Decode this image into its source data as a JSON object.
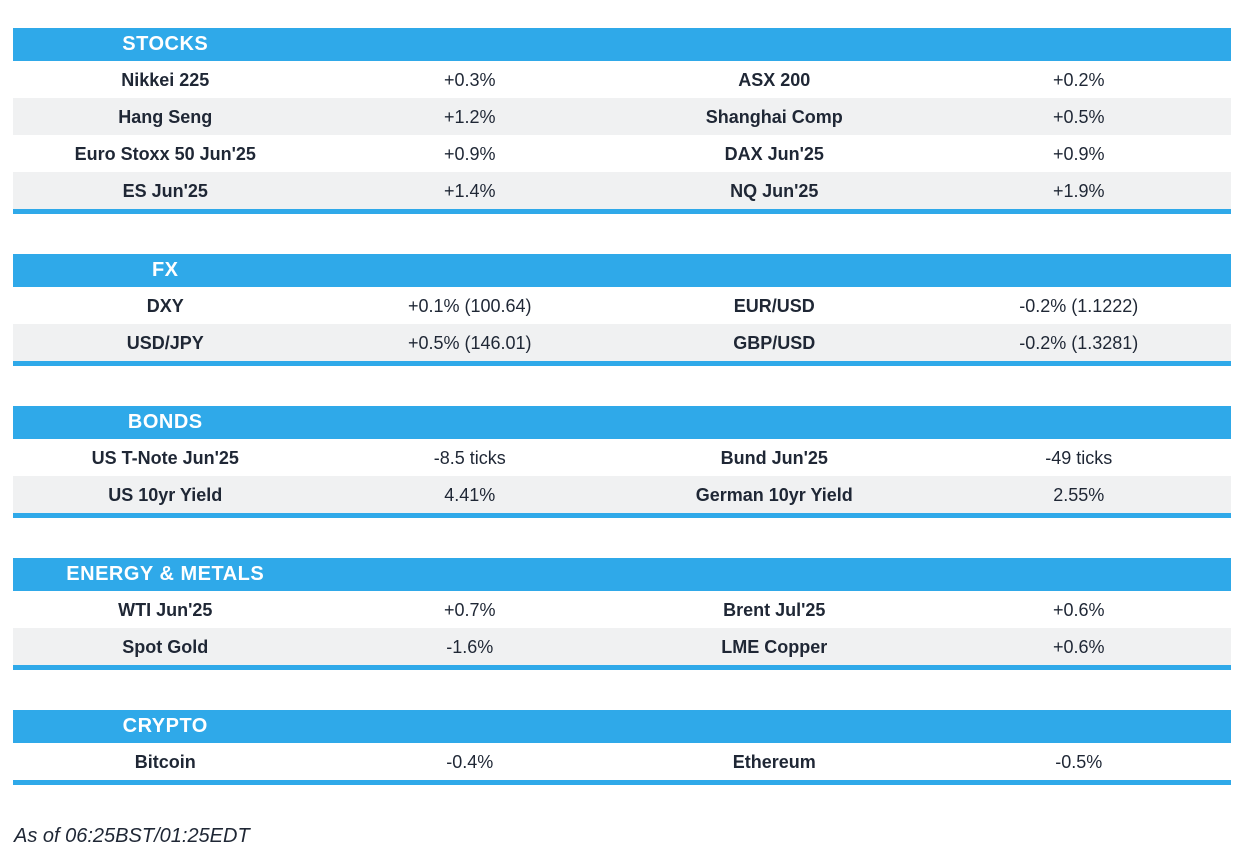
{
  "colors": {
    "accent": "#2FA9E9",
    "row_alt": "#F0F1F2",
    "text": "#1F2735",
    "header_text": "#FFFFFF"
  },
  "sections": [
    {
      "title": "STOCKS",
      "rows": [
        [
          "Nikkei 225",
          "+0.3%",
          "ASX 200",
          "+0.2%"
        ],
        [
          "Hang Seng",
          "+1.2%",
          "Shanghai Comp",
          "+0.5%"
        ],
        [
          "Euro Stoxx 50 Jun'25",
          "+0.9%",
          "DAX Jun'25",
          "+0.9%"
        ],
        [
          "ES Jun'25",
          "+1.4%",
          "NQ Jun'25",
          "+1.9%"
        ]
      ]
    },
    {
      "title": "FX",
      "rows": [
        [
          "DXY",
          "+0.1% (100.64)",
          "EUR/USD",
          "-0.2% (1.1222)"
        ],
        [
          "USD/JPY",
          "+0.5% (146.01)",
          "GBP/USD",
          "-0.2% (1.3281)"
        ]
      ]
    },
    {
      "title": "BONDS",
      "rows": [
        [
          "US T-Note Jun'25",
          "-8.5 ticks",
          "Bund Jun'25",
          "-49 ticks"
        ],
        [
          "US 10yr Yield",
          "4.41%",
          "German 10yr Yield",
          "2.55%"
        ]
      ]
    },
    {
      "title": "ENERGY & METALS",
      "rows": [
        [
          "WTI Jun'25",
          "+0.7%",
          "Brent Jul'25",
          "+0.6%"
        ],
        [
          "Spot Gold",
          "-1.6%",
          "LME Copper",
          "+0.6%"
        ]
      ]
    },
    {
      "title": "CRYPTO",
      "rows": [
        [
          "Bitcoin",
          "-0.4%",
          "Ethereum",
          "-0.5%"
        ]
      ]
    }
  ],
  "footer": {
    "as_of": "As of 06:25BST/01:25EDT"
  }
}
